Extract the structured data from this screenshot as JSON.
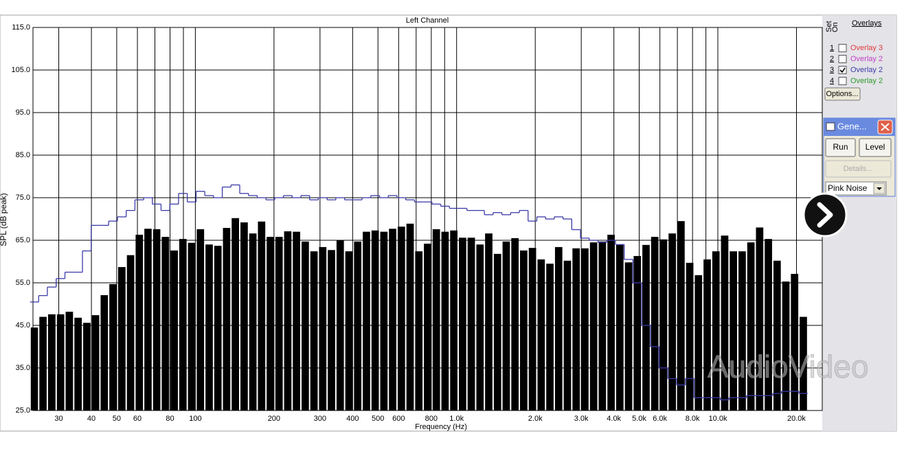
{
  "chart_data": {
    "type": "bar",
    "title": "Left Channel",
    "x_label": "Frequency (Hz)",
    "y_label": "SPL (dB peak)",
    "xlog": true,
    "grid": true,
    "xlim": [
      23.9,
      25100
    ],
    "ylim": [
      25,
      115
    ],
    "yticks": [
      {
        "value": 25,
        "label": "25.0"
      },
      {
        "value": 35,
        "label": "35.0"
      },
      {
        "value": 45,
        "label": "45.0"
      },
      {
        "value": 55,
        "label": "55.0"
      },
      {
        "value": 65,
        "label": "65.0"
      },
      {
        "value": 75,
        "label": "75.0"
      },
      {
        "value": 85,
        "label": "85.0"
      },
      {
        "value": 95,
        "label": "95.0"
      },
      {
        "value": 105,
        "label": "105.0"
      },
      {
        "value": 115,
        "label": "115.0"
      }
    ],
    "xticks": [
      30,
      40,
      50,
      60,
      80,
      100,
      200,
      300,
      400,
      500,
      600,
      800,
      {
        "value": 1000,
        "label": "1.0k"
      },
      {
        "value": 2000,
        "label": "2.0k"
      },
      {
        "value": 3000,
        "label": "3.0k"
      },
      {
        "value": 4000,
        "label": "4.0k"
      },
      {
        "value": 5000,
        "label": "5.0k"
      },
      {
        "value": 6000,
        "label": "6.0k"
      },
      {
        "value": 8000,
        "label": "8.0k"
      },
      {
        "value": 10000,
        "label": "10.0k"
      },
      {
        "value": 20000,
        "label": "20.0k"
      }
    ],
    "xminor": [
      70,
      90,
      700,
      900,
      7000,
      9000
    ],
    "x": [
      24.2,
      26.1,
      28.2,
      30.5,
      32.9,
      35.6,
      38.4,
      41.5,
      44.8,
      48.4,
      52.3,
      56.5,
      61,
      65.9,
      71.1,
      76.8,
      83,
      89.6,
      96.8,
      104.6,
      112.9,
      122,
      131.7,
      142.3,
      153.7,
      166,
      179.3,
      193.6,
      209.1,
      225.8,
      243.9,
      263.4,
      284.5,
      307.3,
      331.9,
      358.5,
      387.2,
      418.2,
      451.7,
      487.9,
      526.9,
      569.1,
      614.6,
      663.8,
      717,
      774.4,
      836.4,
      903.4,
      975.7,
      1053.8,
      1138.1,
      1229.3,
      1327.6,
      1434,
      1548.8,
      1672.8,
      1806.7,
      1951.3,
      2107.5,
      2276.3,
      2458.5,
      2655.3,
      2867.9,
      3097.6,
      3345.7,
      3613.5,
      3902.7,
      4215.1,
      4552.5,
      4917,
      5310.6,
      5735.7,
      6195.2,
      6691.3,
      7227,
      7805.4,
      8430.2,
      9105,
      9834,
      10621,
      11471,
      12390,
      13383,
      14454,
      15611,
      16860,
      18210,
      19668,
      21242
    ],
    "series": [
      {
        "color": "#000000",
        "values": [
          44.5,
          47,
          47.6,
          47.6,
          48.2,
          46.8,
          45.6,
          47.4,
          52.1,
          54.7,
          58.7,
          61.5,
          66.3,
          67.7,
          67.6,
          65.8,
          62.6,
          65.3,
          64.4,
          67.6,
          64,
          63.7,
          67.9,
          70.2,
          69.2,
          66.6,
          69.4,
          65.8,
          65.8,
          67.1,
          67,
          64.7,
          62.4,
          63.4,
          62.7,
          65,
          62.4,
          64.7,
          67,
          67.3,
          67,
          67.7,
          68.2,
          68.9,
          62.4,
          64.2,
          67.6,
          67,
          67.3,
          65.6,
          65.6,
          64,
          66.6,
          61.8,
          64.7,
          65.5,
          62.6,
          63.2,
          60.5,
          59.5,
          63.4,
          60.2,
          63.1,
          63.1,
          64.5,
          64.7,
          66.3,
          63.9,
          59.8,
          61.3,
          63.9,
          65.8,
          65.2,
          66.6,
          69.5,
          59.7,
          56.8,
          60.5,
          62.4,
          66.1,
          62.4,
          62.4,
          64.5,
          68,
          65.3,
          60.2,
          55.3,
          57.1,
          47
        ]
      },
      {
        "type": "step",
        "color": "#3a3aa8",
        "values": [
          50.5,
          52,
          54,
          56,
          57.5,
          57.5,
          62.5,
          68.5,
          68.5,
          69.5,
          70.5,
          72,
          74.5,
          75,
          73.5,
          72,
          73.5,
          76,
          74,
          76.5,
          75.5,
          75,
          77.5,
          78,
          76,
          75.5,
          75,
          74.5,
          75,
          75.5,
          75,
          75.5,
          74.5,
          75,
          74.5,
          75,
          74.5,
          74.5,
          75,
          75.5,
          75,
          75.5,
          75,
          74.5,
          74,
          74,
          73.5,
          73,
          72.5,
          72.5,
          72,
          72,
          71,
          71.5,
          71,
          71.5,
          72,
          69.5,
          70.5,
          70,
          70.5,
          70,
          67.5,
          65.5,
          65,
          64.5,
          65,
          64,
          60.5,
          55,
          45,
          40,
          35,
          32.5,
          31,
          32.5,
          28,
          28,
          28,
          27.5,
          28,
          28,
          28.5,
          28.5,
          28.5,
          29,
          29.5,
          29.5,
          29
        ]
      }
    ]
  },
  "overlays": {
    "title": "Overlays",
    "set_label": "Set",
    "on_label": "On",
    "options": "Options...",
    "rows": [
      {
        "set": 1,
        "name": "Overlay 3",
        "color": "#e0383d",
        "checked": false
      },
      {
        "set": 2,
        "name": "Overlay 2",
        "color": "#c040c8",
        "checked": false
      },
      {
        "set": 3,
        "name": "Overlay 2",
        "color": "#3a3aa8",
        "checked": true
      },
      {
        "set": 4,
        "name": "Overlay 2",
        "color": "#2a9a2a",
        "checked": false
      }
    ]
  },
  "generator": {
    "title": "Gene...",
    "buttons": [
      "Run",
      "Level"
    ],
    "details": "Details...",
    "signal": "Pink Noise"
  },
  "watermark": "AudioVideo"
}
